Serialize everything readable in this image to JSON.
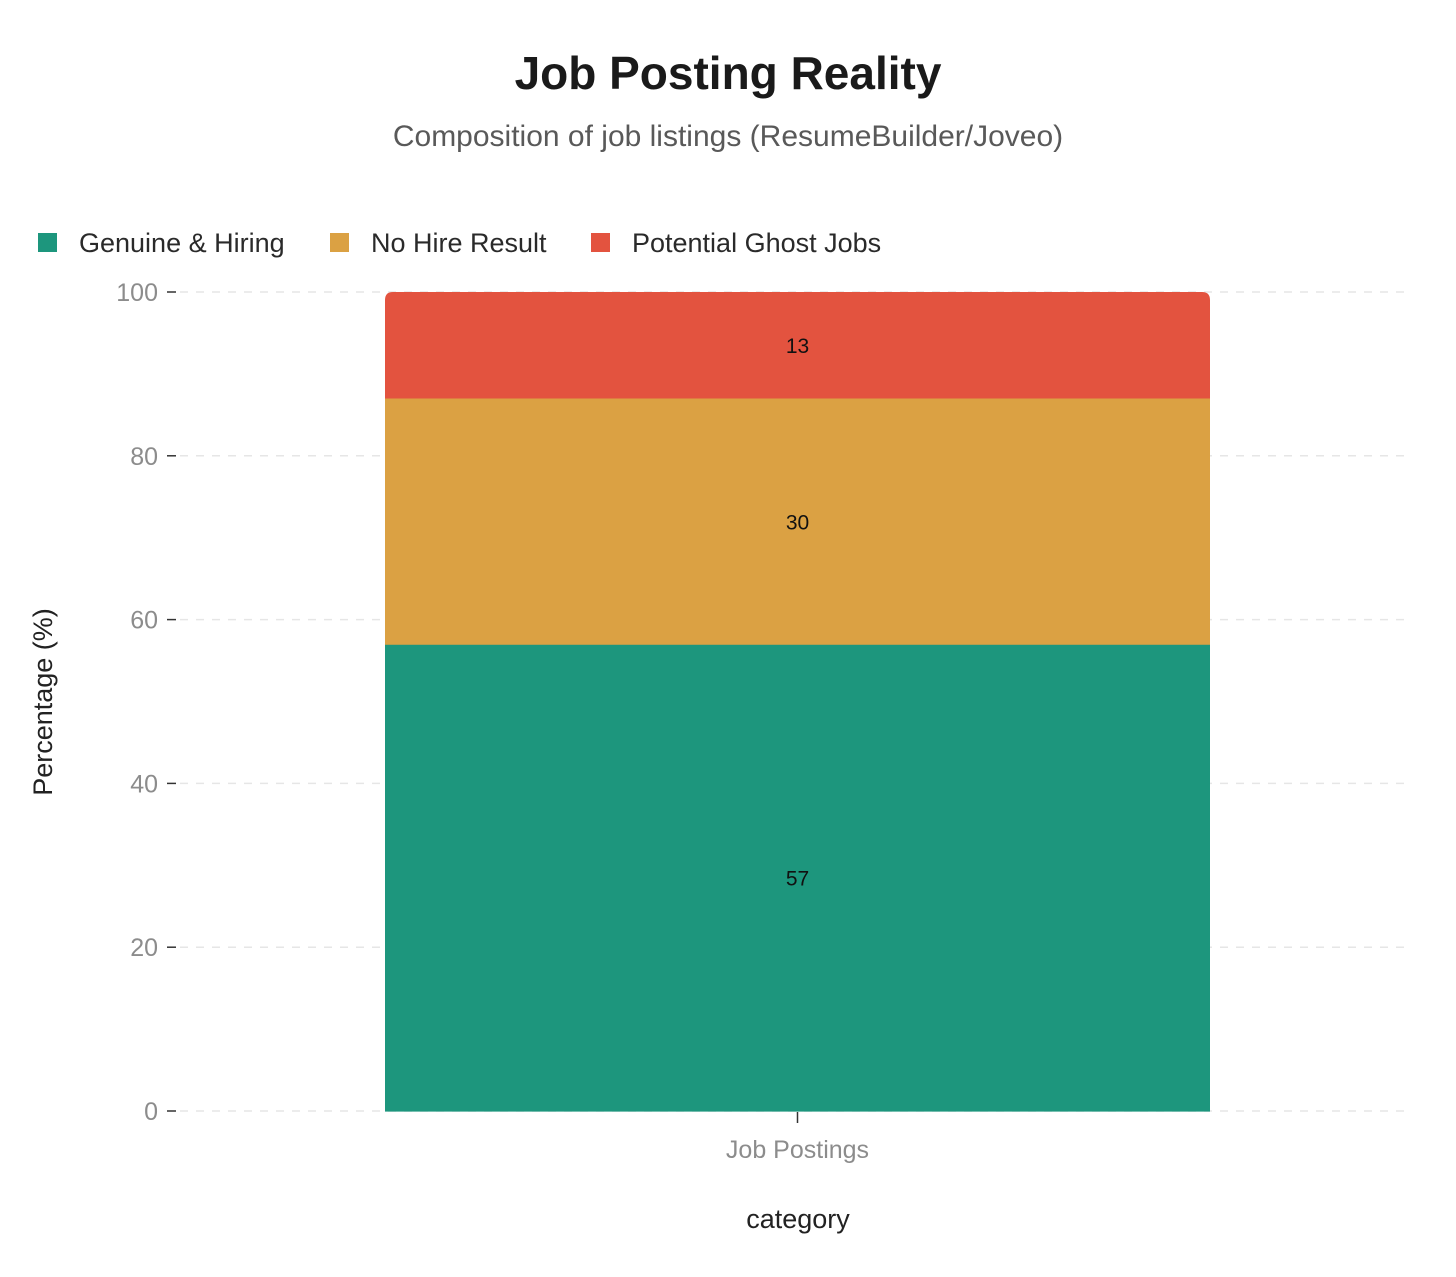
{
  "chart_data": {
    "type": "bar",
    "stacked": true,
    "title": "Job Posting Reality",
    "subtitle": "Composition of job listings (ResumeBuilder/Joveo)",
    "xlabel": "category",
    "ylabel": "Percentage (%)",
    "categories": [
      "Job Postings"
    ],
    "ylim": [
      0,
      100
    ],
    "yticks": [
      0,
      20,
      40,
      60,
      80,
      100
    ],
    "grid": "horizontal dashed",
    "legend_position": "top-left",
    "series": [
      {
        "name": "Genuine & Hiring",
        "values": [
          57
        ],
        "color": "#1d967d"
      },
      {
        "name": "No Hire Result",
        "values": [
          30
        ],
        "color": "#dba143"
      },
      {
        "name": "Potential Ghost Jobs",
        "values": [
          13
        ],
        "color": "#e3533f"
      }
    ]
  }
}
